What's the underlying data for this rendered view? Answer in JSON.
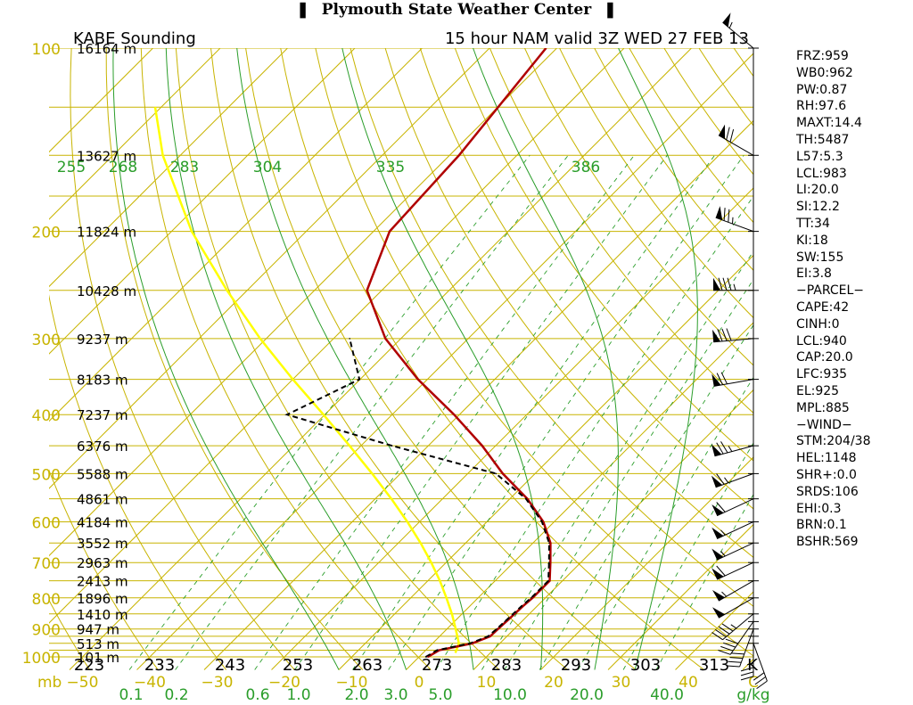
{
  "header": {
    "title": "Plymouth State Weather Center",
    "sounding_label": "KABE Sounding",
    "run_label": "15 hour NAM valid 3Z WED 27 FEB 13"
  },
  "colors": {
    "isobar": "#c8b400",
    "isotherm": "#c8b400",
    "dry_adiabat": "#c8b400",
    "moist_adiabat": "#2a9d2a",
    "mixing_ratio": "#2a9d2a",
    "temperature": "#b00000",
    "dewpoint": "#000000",
    "parcel": "#ffff00",
    "axis_label": "#c8b400",
    "green_label": "#2a9d2a"
  },
  "indices": [
    "FRZ:959",
    "WB0:962",
    "PW:0.87",
    "RH:97.6",
    "MAXT:14.4",
    "TH:5487",
    "L57:5.3",
    "LCL:983",
    "LI:20.0",
    "SI:12.2",
    "TT:34",
    "KI:18",
    "SW:155",
    "EI:3.8",
    "−PARCEL−",
    "CAPE:42",
    "CINH:0",
    "LCL:940",
    "CAP:20.0",
    "LFC:935",
    "EL:925",
    "MPL:885",
    "−WIND−",
    "STM:204/38",
    "HEL:1148",
    "SHR+:0.0",
    "SRDS:106",
    "EHI:0.3",
    "BRN:0.1",
    "BSHR:569"
  ],
  "chart_data": {
    "type": "skew-t",
    "title": "KABE Sounding",
    "subtitle": "15 hour NAM valid 3Z WED 27 FEB 13",
    "pressure_levels_mb": [
      1000,
      975,
      950,
      925,
      900,
      850,
      800,
      750,
      700,
      650,
      600,
      550,
      500,
      450,
      400,
      350,
      300,
      250,
      200,
      150,
      100
    ],
    "pressure_labels": [
      "100",
      "200",
      "300",
      "400",
      "500",
      "600",
      "700",
      "800",
      "900",
      "1000"
    ],
    "pressure_label_levels": [
      100,
      200,
      300,
      400,
      500,
      600,
      700,
      800,
      900,
      1000
    ],
    "pressure_unit_label": "mb",
    "heights": [
      {
        "p": 100,
        "label": "16164 m"
      },
      {
        "p": 150,
        "label": "13627 m"
      },
      {
        "p": 200,
        "label": "11824 m"
      },
      {
        "p": 250,
        "label": "10428 m"
      },
      {
        "p": 300,
        "label": "9237 m"
      },
      {
        "p": 350,
        "label": "8183 m"
      },
      {
        "p": 400,
        "label": "7237 m"
      },
      {
        "p": 450,
        "label": "6376 m"
      },
      {
        "p": 500,
        "label": "5588 m"
      },
      {
        "p": 550,
        "label": "4861 m"
      },
      {
        "p": 600,
        "label": "4184 m"
      },
      {
        "p": 650,
        "label": "3552 m"
      },
      {
        "p": 700,
        "label": "2963 m"
      },
      {
        "p": 750,
        "label": "2413 m"
      },
      {
        "p": 800,
        "label": "1896 m"
      },
      {
        "p": 850,
        "label": "1410 m"
      },
      {
        "p": 900,
        "label": "947 m"
      },
      {
        "p": 950,
        "label": "513 m"
      },
      {
        "p": 1000,
        "label": "101 m"
      }
    ],
    "temperature_ticks_c": [
      -50,
      -40,
      -30,
      -20,
      -10,
      0,
      10,
      20,
      30,
      40
    ],
    "temperature_tick_labels": [
      "−50",
      "−40",
      "−30",
      "−20",
      "−10",
      "0",
      "10",
      "20",
      "30",
      "40"
    ],
    "temperature_unit_label": "C",
    "theta_labels_k": [
      "223",
      "233",
      "243",
      "253",
      "263",
      "273",
      "283",
      "293",
      "303",
      "313"
    ],
    "theta_unit_label": "K",
    "theta_e_labels_k": [
      "255",
      "268",
      "283",
      "304",
      "335",
      "386"
    ],
    "mixing_ratio_labels": [
      "0.1",
      "0.2",
      "0.6",
      "1.0",
      "2.0",
      "3.0",
      "5.0",
      "10.0",
      "20.0",
      "40.0"
    ],
    "mixing_ratio_unit_label": "g/kg",
    "temperature_profile": [
      {
        "p": 1000,
        "t": 1.3
      },
      {
        "p": 975,
        "t": 2.0
      },
      {
        "p": 950,
        "t": 5.9
      },
      {
        "p": 925,
        "t": 7.5
      },
      {
        "p": 900,
        "t": 7.6
      },
      {
        "p": 875,
        "t": 7.7
      },
      {
        "p": 850,
        "t": 7.8
      },
      {
        "p": 825,
        "t": 7.9
      },
      {
        "p": 800,
        "t": 8.1
      },
      {
        "p": 750,
        "t": 8.1
      },
      {
        "p": 700,
        "t": 5.5
      },
      {
        "p": 650,
        "t": 2.6
      },
      {
        "p": 600,
        "t": -1.6
      },
      {
        "p": 550,
        "t": -7.4
      },
      {
        "p": 500,
        "t": -14.8
      },
      {
        "p": 450,
        "t": -22.0
      },
      {
        "p": 400,
        "t": -30.8
      },
      {
        "p": 350,
        "t": -41.4
      },
      {
        "p": 300,
        "t": -52.3
      },
      {
        "p": 250,
        "t": -62.2
      },
      {
        "p": 200,
        "t": -67.6
      },
      {
        "p": 150,
        "t": -68.6
      },
      {
        "p": 100,
        "t": -71.6
      }
    ],
    "dewpoint_profile": [
      {
        "p": 1000,
        "t": 1.0
      },
      {
        "p": 975,
        "t": 1.7
      },
      {
        "p": 950,
        "t": 5.6
      },
      {
        "p": 925,
        "t": 7.2
      },
      {
        "p": 900,
        "t": 7.4
      },
      {
        "p": 875,
        "t": 7.5
      },
      {
        "p": 850,
        "t": 7.6
      },
      {
        "p": 825,
        "t": 7.7
      },
      {
        "p": 800,
        "t": 7.9
      },
      {
        "p": 750,
        "t": 7.9
      },
      {
        "p": 700,
        "t": 5.3
      },
      {
        "p": 650,
        "t": 2.4
      },
      {
        "p": 600,
        "t": -1.8
      },
      {
        "p": 550,
        "t": -7.6
      },
      {
        "p": 500,
        "t": -15.8
      },
      {
        "p": 450,
        "t": -35.4
      },
      {
        "p": 400,
        "t": -55.6
      },
      {
        "p": 350,
        "t": -50.1
      },
      {
        "p": 300,
        "t": -57.6
      }
    ],
    "parcel_profile": [
      {
        "p": 985,
        "t": 4.8
      },
      {
        "p": 950,
        "t": 3.9
      },
      {
        "p": 900,
        "t": 1.3
      },
      {
        "p": 850,
        "t": -1.5
      },
      {
        "p": 800,
        "t": -4.7
      },
      {
        "p": 750,
        "t": -8.2
      },
      {
        "p": 700,
        "t": -12.2
      },
      {
        "p": 650,
        "t": -16.7
      },
      {
        "p": 600,
        "t": -21.8
      },
      {
        "p": 550,
        "t": -27.6
      },
      {
        "p": 500,
        "t": -34.2
      },
      {
        "p": 450,
        "t": -41.7
      },
      {
        "p": 400,
        "t": -50.2
      },
      {
        "p": 350,
        "t": -60.0
      },
      {
        "p": 300,
        "t": -70.9
      },
      {
        "p": 250,
        "t": -83.0
      },
      {
        "p": 200,
        "t": -97.0
      },
      {
        "p": 150,
        "t": -112.6
      },
      {
        "p": 125,
        "t": -120.9
      }
    ],
    "wind_barbs": [
      {
        "p": 100,
        "dir": 310,
        "spd": 55
      },
      {
        "p": 150,
        "dir": 300,
        "spd": 70
      },
      {
        "p": 200,
        "dir": 290,
        "spd": 75
      },
      {
        "p": 250,
        "dir": 270,
        "spd": 85
      },
      {
        "p": 300,
        "dir": 265,
        "spd": 80
      },
      {
        "p": 350,
        "dir": 260,
        "spd": 70
      },
      {
        "p": 450,
        "dir": 255,
        "spd": 75
      },
      {
        "p": 500,
        "dir": 250,
        "spd": 65
      },
      {
        "p": 550,
        "dir": 245,
        "spd": 60
      },
      {
        "p": 600,
        "dir": 245,
        "spd": 55
      },
      {
        "p": 650,
        "dir": 245,
        "spd": 55
      },
      {
        "p": 700,
        "dir": 245,
        "spd": 60
      },
      {
        "p": 750,
        "dir": 240,
        "spd": 55
      },
      {
        "p": 800,
        "dir": 240,
        "spd": 50
      },
      {
        "p": 850,
        "dir": 230,
        "spd": 45
      },
      {
        "p": 875,
        "dir": 215,
        "spd": 40
      },
      {
        "p": 900,
        "dir": 200,
        "spd": 40
      },
      {
        "p": 925,
        "dir": 180,
        "spd": 35
      },
      {
        "p": 950,
        "dir": 160,
        "spd": 30
      }
    ]
  }
}
